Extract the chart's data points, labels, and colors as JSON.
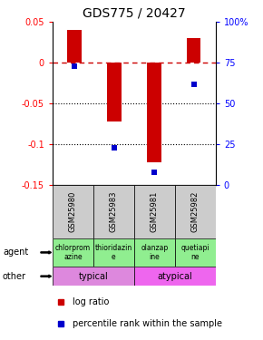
{
  "title": "GDS775 / 20427",
  "samples": [
    "GSM25980",
    "GSM25983",
    "GSM25981",
    "GSM25982"
  ],
  "log_ratios": [
    0.04,
    -0.072,
    -0.122,
    0.03
  ],
  "percentile_ranks": [
    73,
    23,
    8,
    62
  ],
  "agents": [
    "chlorprom\nazine",
    "thioridazin\ne",
    "olanzap\nine",
    "quetiapi\nne"
  ],
  "agent_colors": [
    "#90ee90",
    "#90ee90",
    "#90ee90",
    "#90ee90"
  ],
  "other_groups": [
    [
      "typical",
      0,
      2
    ],
    [
      "atypical",
      2,
      4
    ]
  ],
  "other_color_typical": "#dd88dd",
  "other_color_atypical": "#ee66ee",
  "ylim_left": [
    -0.15,
    0.05
  ],
  "ylim_right": [
    0,
    100
  ],
  "yticks_left": [
    0.05,
    0.0,
    -0.05,
    -0.1,
    -0.15
  ],
  "yticks_right": [
    100,
    75,
    50,
    25,
    0
  ],
  "bar_color": "#cc0000",
  "dot_color": "#0000cc",
  "zero_line_color": "#cc0000",
  "grid_color": "#000000",
  "sample_box_color": "#cccccc",
  "title_fontsize": 10,
  "tick_fontsize": 7,
  "annotation_fontsize": 7
}
